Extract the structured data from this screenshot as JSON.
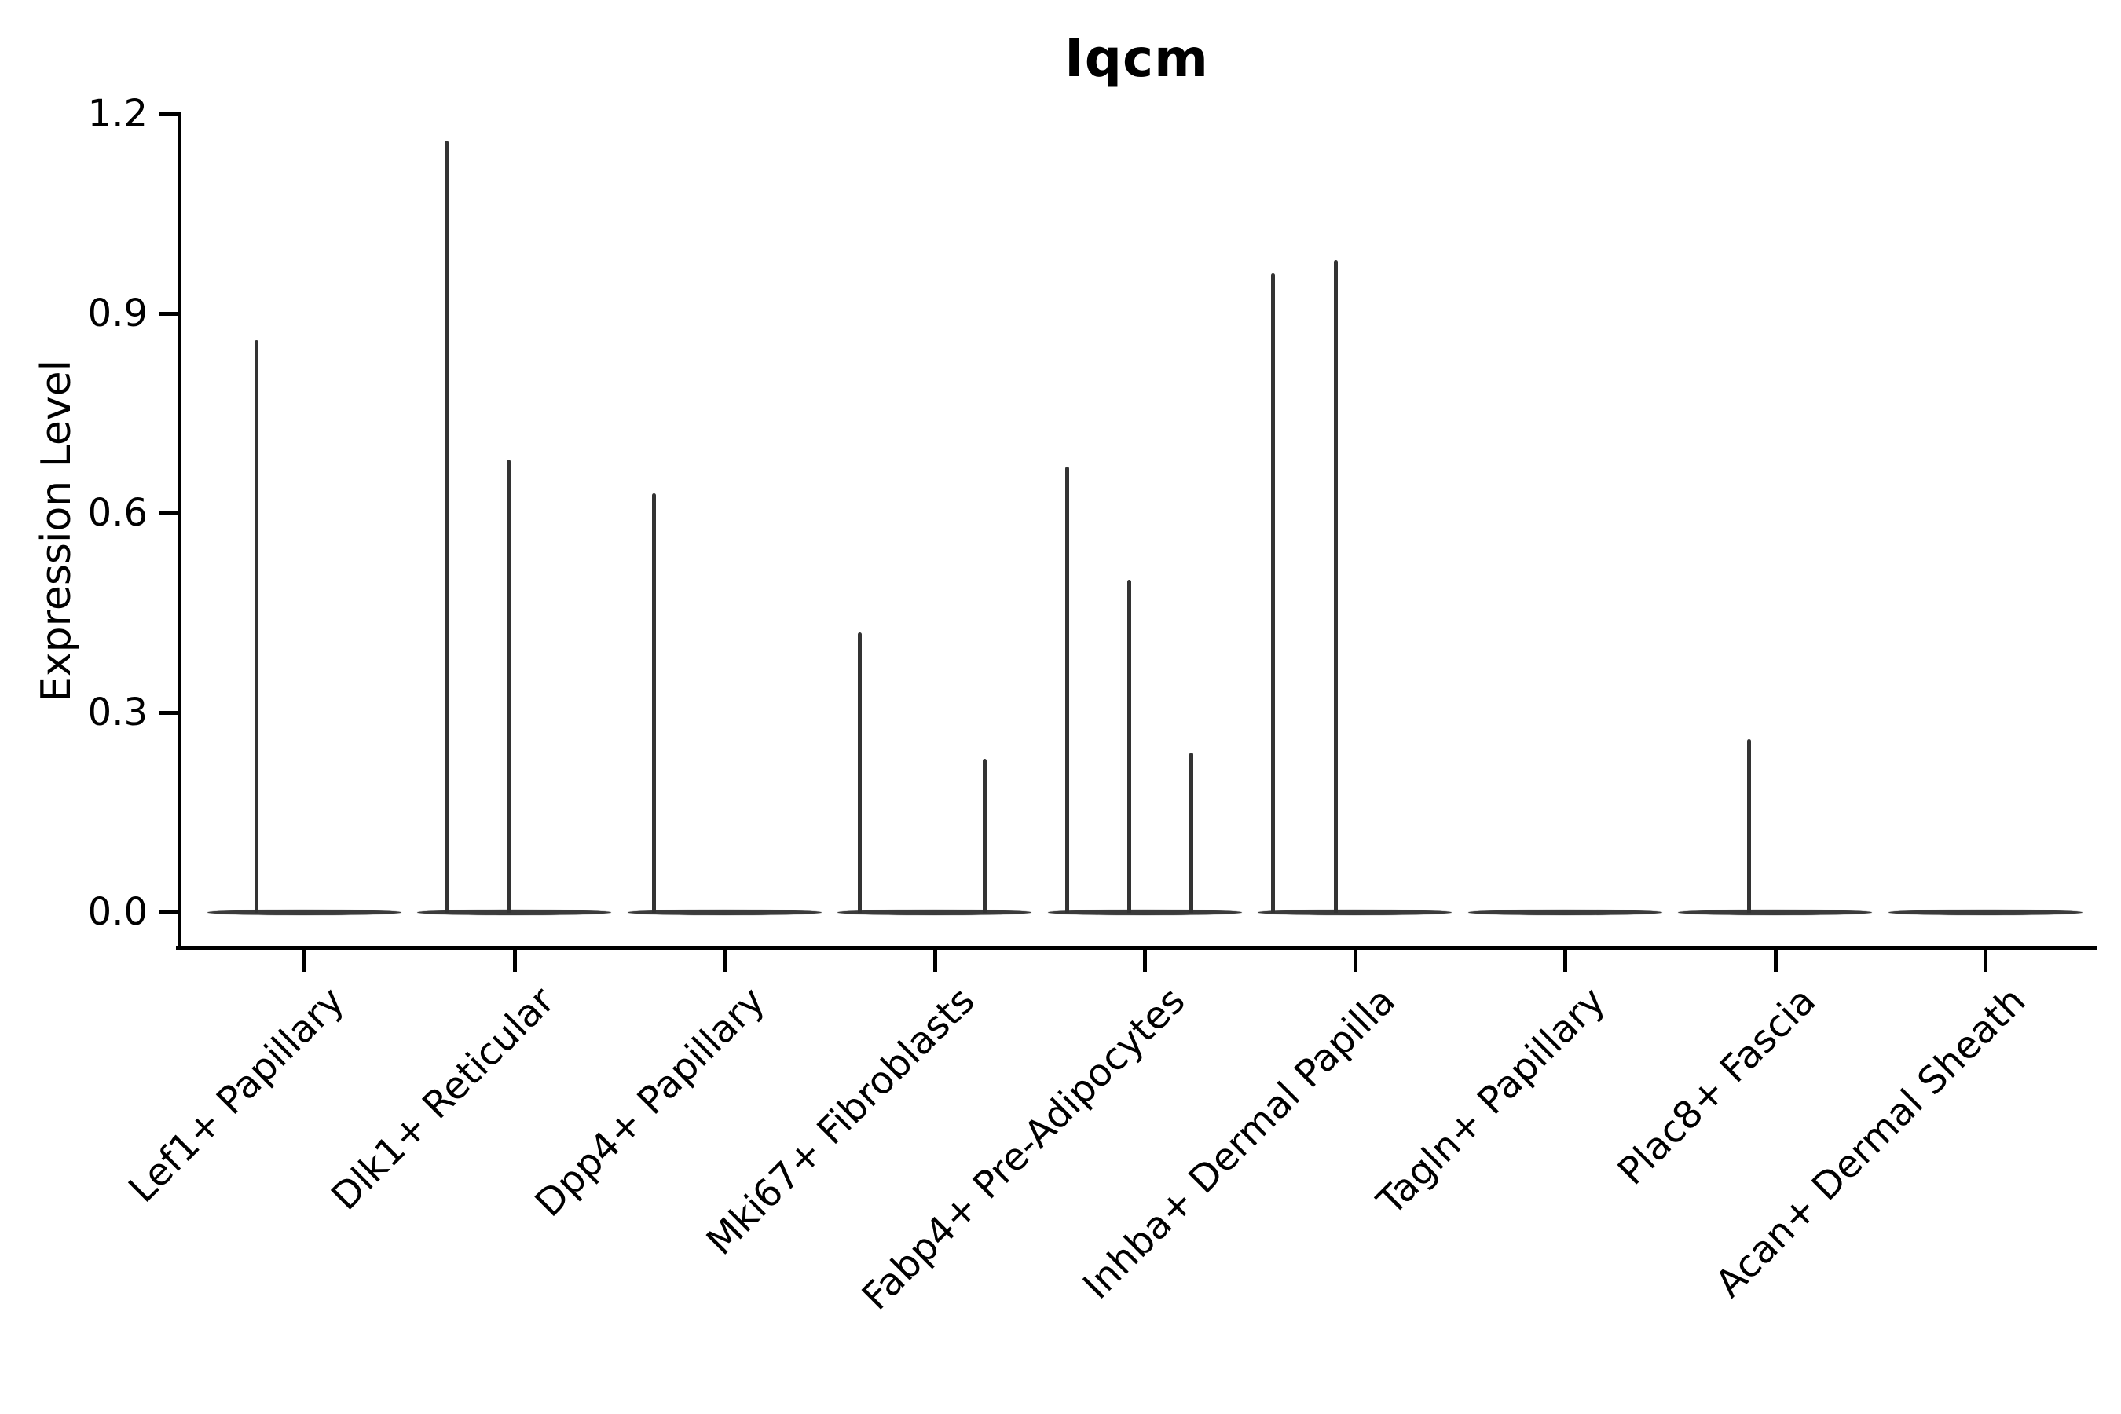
{
  "chart_data": {
    "type": "violin",
    "title": "Iqcm",
    "ylabel": "Expression Level",
    "xlabel": "",
    "grid": false,
    "legend": "none",
    "ylim": [
      0,
      1.2
    ],
    "yticks": [
      {
        "label": "0.0",
        "value": 0.0
      },
      {
        "label": "0.3",
        "value": 0.3
      },
      {
        "label": "0.6",
        "value": 0.6
      },
      {
        "label": "0.9",
        "value": 0.9
      },
      {
        "label": "1.2",
        "value": 1.2
      }
    ],
    "categories": [
      {
        "label": "Lef1+ Papillary",
        "spikes": [
          {
            "dx": -61,
            "value": 0.86
          }
        ]
      },
      {
        "label": "Dlk1+ Reticular",
        "spikes": [
          {
            "dx": -86,
            "value": 1.16
          },
          {
            "dx": -7,
            "value": 0.68
          }
        ]
      },
      {
        "label": "Dpp4+ Papillary",
        "spikes": [
          {
            "dx": -90,
            "value": 0.63
          }
        ]
      },
      {
        "label": "Mki67+ Fibroblasts",
        "spikes": [
          {
            "dx": -95,
            "value": 0.42
          },
          {
            "dx": 64,
            "value": 0.23
          }
        ]
      },
      {
        "label": "Fabp4+ Pre-Adipocytes",
        "spikes": [
          {
            "dx": -99,
            "value": 0.67
          },
          {
            "dx": -20,
            "value": 0.5
          },
          {
            "dx": 59,
            "value": 0.24
          }
        ]
      },
      {
        "label": "Inhba+ Dermal Papilla",
        "spikes": [
          {
            "dx": -104,
            "value": 0.96
          },
          {
            "dx": -24,
            "value": 0.98
          }
        ]
      },
      {
        "label": "Tagln+ Papillary",
        "spikes": []
      },
      {
        "label": "Plac8+ Fascia",
        "spikes": [
          {
            "dx": -33,
            "value": 0.26
          }
        ]
      },
      {
        "label": "Acan+ Dermal Sheath",
        "spikes": []
      }
    ],
    "colors": {
      "violin": "#3b3b3b",
      "axis": "#000000",
      "text": "#000000",
      "background": "#ffffff"
    }
  }
}
